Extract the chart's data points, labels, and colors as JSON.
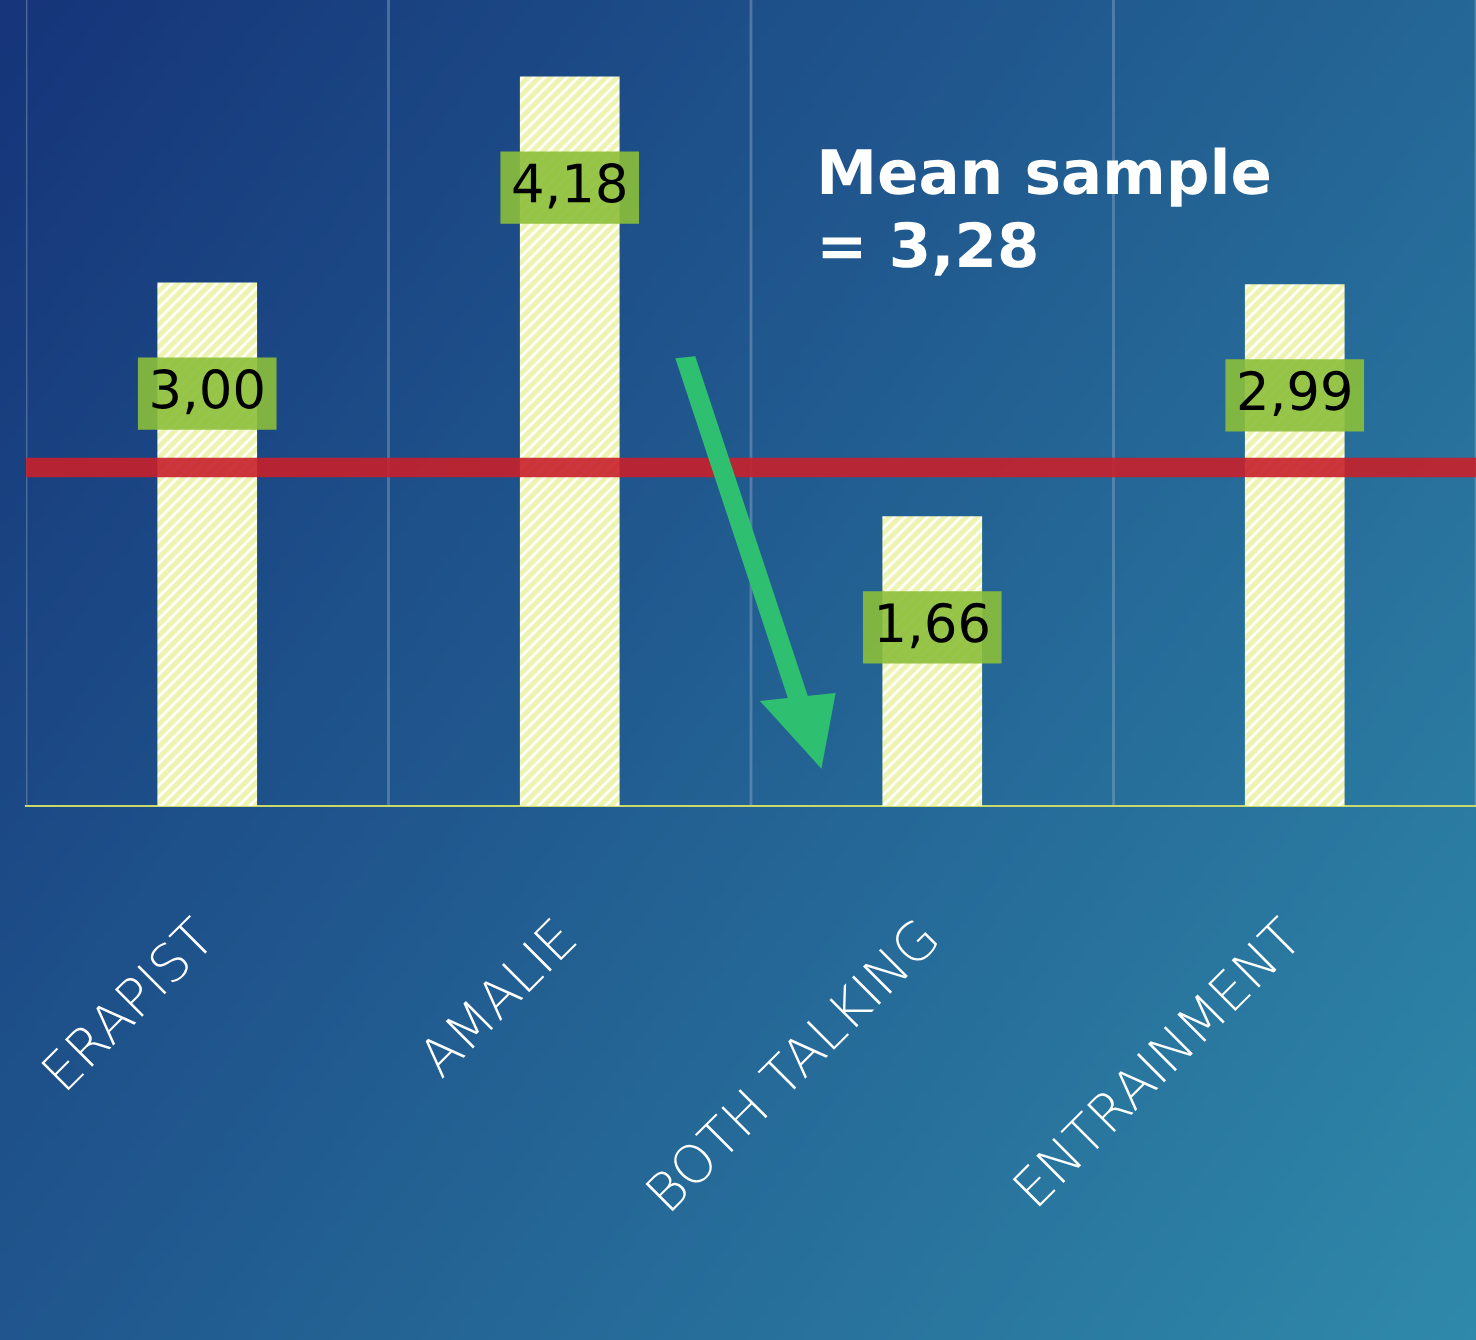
{
  "chart_data": {
    "type": "bar",
    "categories": [
      "ERAPIST",
      "AMALIE",
      "BOTH TALKING",
      "ENTRAINMENT"
    ],
    "values": [
      3.0,
      4.18,
      1.66,
      2.99
    ],
    "value_labels": [
      "3,00",
      "4,18",
      "1,66",
      "2,99"
    ],
    "color": "#eef3b0",
    "ref_lines": [
      {
        "axis": "y",
        "value": 1.94,
        "color": "#c8202a",
        "line_style": "solid"
      }
    ],
    "annotations": [
      "Mean sample\n= 3,28"
    ],
    "grid": "x"
  }
}
